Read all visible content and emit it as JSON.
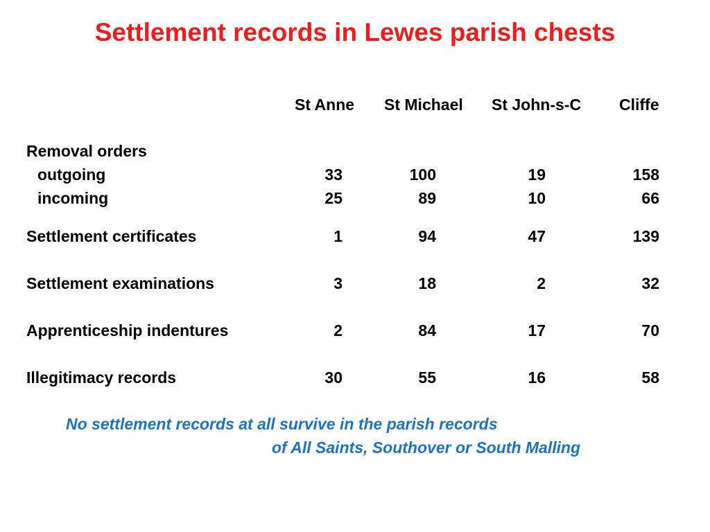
{
  "slide": {
    "title": "Settlement records in Lewes parish chests",
    "title_color": "#ee1c1c",
    "note_color": "#1e73be"
  },
  "table": {
    "columns": [
      "St Anne",
      "St Michael",
      "St John-s-C",
      "Cliffe"
    ],
    "group_label": "Removal orders",
    "rows": [
      {
        "label": "outgoing",
        "values": [
          "33",
          "100",
          "19",
          "158"
        ]
      },
      {
        "label": "incoming",
        "values": [
          "25",
          "89",
          "10",
          "66"
        ]
      },
      {
        "label": "Settlement certificates",
        "values": [
          "1",
          "94",
          "47",
          "139"
        ]
      },
      {
        "label": "Settlement examinations",
        "values": [
          "3",
          "18",
          "2",
          "32"
        ]
      },
      {
        "label": "Apprenticeship indentures",
        "values": [
          "2",
          "84",
          "17",
          "70"
        ]
      },
      {
        "label": "Illegitimacy records",
        "values": [
          "30",
          "55",
          "16",
          "58"
        ]
      }
    ]
  },
  "note": {
    "line1": "No settlement records at all survive in the parish records",
    "line2": "of All Saints, Southover or South Malling"
  }
}
